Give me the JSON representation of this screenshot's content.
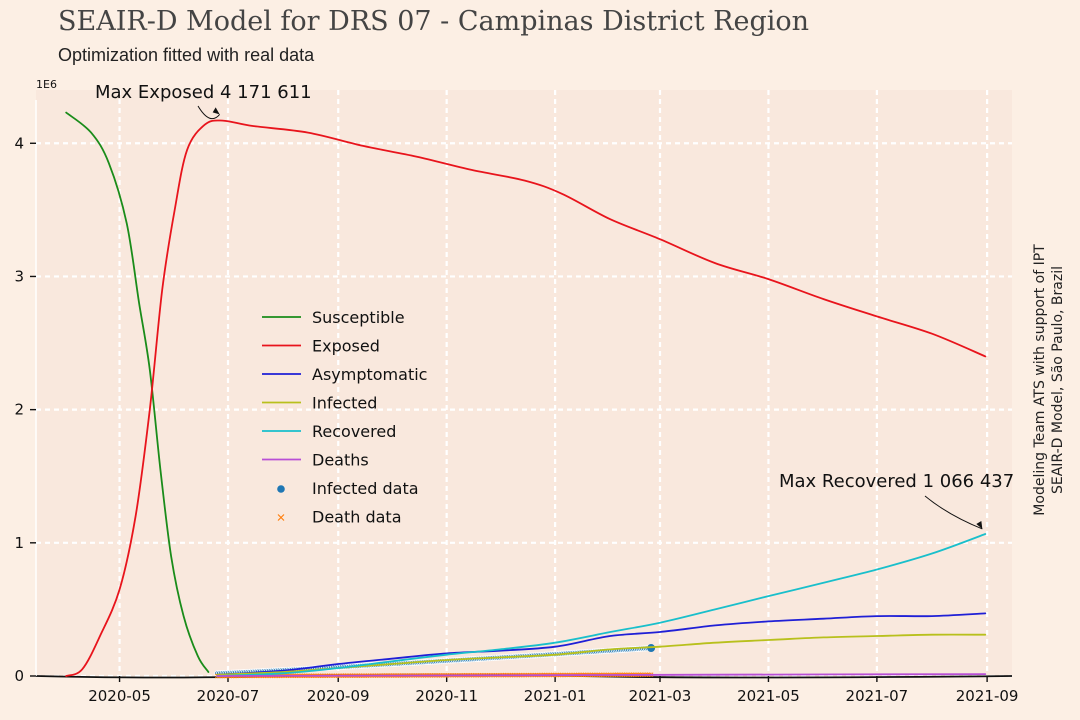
{
  "title": "SEAIR-D Model for DRS 07 - Campinas District Region",
  "subtitle": "Optimization fitted with real data",
  "side_note": [
    "Modeling Team ATS with support of IPT",
    "SEAIR-D Model, São Paulo, Brazil"
  ],
  "colors": {
    "background": "#fcefe4",
    "plot_background": "#f9e8dd",
    "grid": "#ffffff",
    "susceptible": "#1a8c1a",
    "exposed": "#e8141c",
    "asymptomatic": "#1f1fd6",
    "infected": "#b8c01c",
    "recovered": "#19bfcb",
    "deaths": "#b84fd6",
    "infected_data": "#1f77b4",
    "death_data": "#ff7f0e"
  },
  "chart_data": {
    "type": "line",
    "title": "SEAIR-D Model for DRS 07 - Campinas District Region",
    "subtitle": "Optimization fitted with real data",
    "xlabel": "",
    "ylabel": "",
    "y_scale_label": "1e6",
    "xlim": [
      "2020-03-15",
      "2021-09-15"
    ],
    "ylim": [
      0,
      4.4
    ],
    "grid": true,
    "legend_position": "center-left",
    "x_ticks": [
      "2020-05",
      "2020-07",
      "2020-09",
      "2020-11",
      "2021-01",
      "2021-03",
      "2021-05",
      "2021-07",
      "2021-09"
    ],
    "y_ticks": [
      "0",
      "1",
      "2",
      "3",
      "4"
    ],
    "series": [
      {
        "name": "Susceptible",
        "color_key": "susceptible",
        "points": [
          [
            "2020-04-01",
            4.23
          ],
          [
            "2020-04-15",
            4.08
          ],
          [
            "2020-04-25",
            3.85
          ],
          [
            "2020-05-05",
            3.4
          ],
          [
            "2020-05-12",
            2.8
          ],
          [
            "2020-05-18",
            2.3
          ],
          [
            "2020-05-24",
            1.55
          ],
          [
            "2020-05-30",
            0.9
          ],
          [
            "2020-06-06",
            0.45
          ],
          [
            "2020-06-14",
            0.15
          ],
          [
            "2020-06-20",
            0.03
          ]
        ]
      },
      {
        "name": "Exposed",
        "color_key": "exposed",
        "points": [
          [
            "2020-04-01",
            0.0
          ],
          [
            "2020-04-10",
            0.05
          ],
          [
            "2020-04-20",
            0.3
          ],
          [
            "2020-05-01",
            0.65
          ],
          [
            "2020-05-10",
            1.2
          ],
          [
            "2020-05-18",
            2.0
          ],
          [
            "2020-05-25",
            2.9
          ],
          [
            "2020-06-01",
            3.5
          ],
          [
            "2020-06-08",
            3.95
          ],
          [
            "2020-06-18",
            4.14
          ],
          [
            "2020-06-28",
            4.17
          ],
          [
            "2020-07-15",
            4.13
          ],
          [
            "2020-08-15",
            4.08
          ],
          [
            "2020-09-15",
            3.98
          ],
          [
            "2020-10-15",
            3.9
          ],
          [
            "2020-11-15",
            3.8
          ],
          [
            "2020-12-15",
            3.72
          ],
          [
            "2021-01-05",
            3.62
          ],
          [
            "2021-02-01",
            3.43
          ],
          [
            "2021-03-01",
            3.28
          ],
          [
            "2021-04-01",
            3.1
          ],
          [
            "2021-05-01",
            2.98
          ],
          [
            "2021-06-01",
            2.83
          ],
          [
            "2021-07-01",
            2.7
          ],
          [
            "2021-08-01",
            2.57
          ],
          [
            "2021-08-31",
            2.4
          ]
        ]
      },
      {
        "name": "Asymptomatic",
        "color_key": "asymptomatic",
        "points": [
          [
            "2020-06-25",
            0.01
          ],
          [
            "2020-08-01",
            0.04
          ],
          [
            "2020-09-01",
            0.09
          ],
          [
            "2020-10-01",
            0.13
          ],
          [
            "2020-11-01",
            0.17
          ],
          [
            "2020-12-01",
            0.19
          ],
          [
            "2021-01-01",
            0.22
          ],
          [
            "2021-02-01",
            0.3
          ],
          [
            "2021-03-01",
            0.33
          ],
          [
            "2021-04-01",
            0.38
          ],
          [
            "2021-05-01",
            0.41
          ],
          [
            "2021-06-01",
            0.43
          ],
          [
            "2021-07-01",
            0.45
          ],
          [
            "2021-08-01",
            0.45
          ],
          [
            "2021-08-31",
            0.47
          ]
        ]
      },
      {
        "name": "Infected",
        "color_key": "infected",
        "points": [
          [
            "2020-06-25",
            0.01
          ],
          [
            "2020-08-01",
            0.03
          ],
          [
            "2020-09-01",
            0.06
          ],
          [
            "2020-10-01",
            0.09
          ],
          [
            "2020-11-01",
            0.12
          ],
          [
            "2020-12-01",
            0.14
          ],
          [
            "2021-01-01",
            0.16
          ],
          [
            "2021-02-01",
            0.2
          ],
          [
            "2021-03-01",
            0.22
          ],
          [
            "2021-04-01",
            0.25
          ],
          [
            "2021-05-01",
            0.27
          ],
          [
            "2021-06-01",
            0.29
          ],
          [
            "2021-07-01",
            0.3
          ],
          [
            "2021-08-01",
            0.31
          ],
          [
            "2021-08-31",
            0.31
          ]
        ]
      },
      {
        "name": "Recovered",
        "color_key": "recovered",
        "points": [
          [
            "2020-06-25",
            0.0
          ],
          [
            "2020-08-01",
            0.02
          ],
          [
            "2020-09-01",
            0.06
          ],
          [
            "2020-10-01",
            0.11
          ],
          [
            "2020-11-01",
            0.16
          ],
          [
            "2020-12-01",
            0.2
          ],
          [
            "2021-01-01",
            0.25
          ],
          [
            "2021-02-01",
            0.33
          ],
          [
            "2021-03-01",
            0.4
          ],
          [
            "2021-04-01",
            0.5
          ],
          [
            "2021-05-01",
            0.6
          ],
          [
            "2021-06-01",
            0.7
          ],
          [
            "2021-07-01",
            0.8
          ],
          [
            "2021-08-01",
            0.92
          ],
          [
            "2021-08-31",
            1.066
          ]
        ]
      },
      {
        "name": "Deaths",
        "color_key": "deaths",
        "points": [
          [
            "2020-06-25",
            0.0
          ],
          [
            "2020-10-01",
            0.003
          ],
          [
            "2021-01-01",
            0.006
          ],
          [
            "2021-04-01",
            0.01
          ],
          [
            "2021-08-31",
            0.014
          ]
        ]
      }
    ],
    "scatter_series": [
      {
        "name": "Infected data",
        "marker": "circle",
        "color_key": "infected_data",
        "x_range": [
          "2020-06-25",
          "2021-02-24"
        ],
        "y_range": [
          0.02,
          0.21
        ]
      },
      {
        "name": "Death data",
        "marker": "x",
        "color_key": "death_data",
        "x_range": [
          "2020-06-25",
          "2021-02-24"
        ],
        "y_range": [
          0.0,
          0.01
        ]
      }
    ],
    "annotations": [
      {
        "text": "Max Exposed 4 171 611",
        "x": "2020-06-28",
        "y": 4.171611
      },
      {
        "text": "Max Recovered 1 066 437",
        "x": "2021-08-31",
        "y": 1.066437
      }
    ]
  }
}
